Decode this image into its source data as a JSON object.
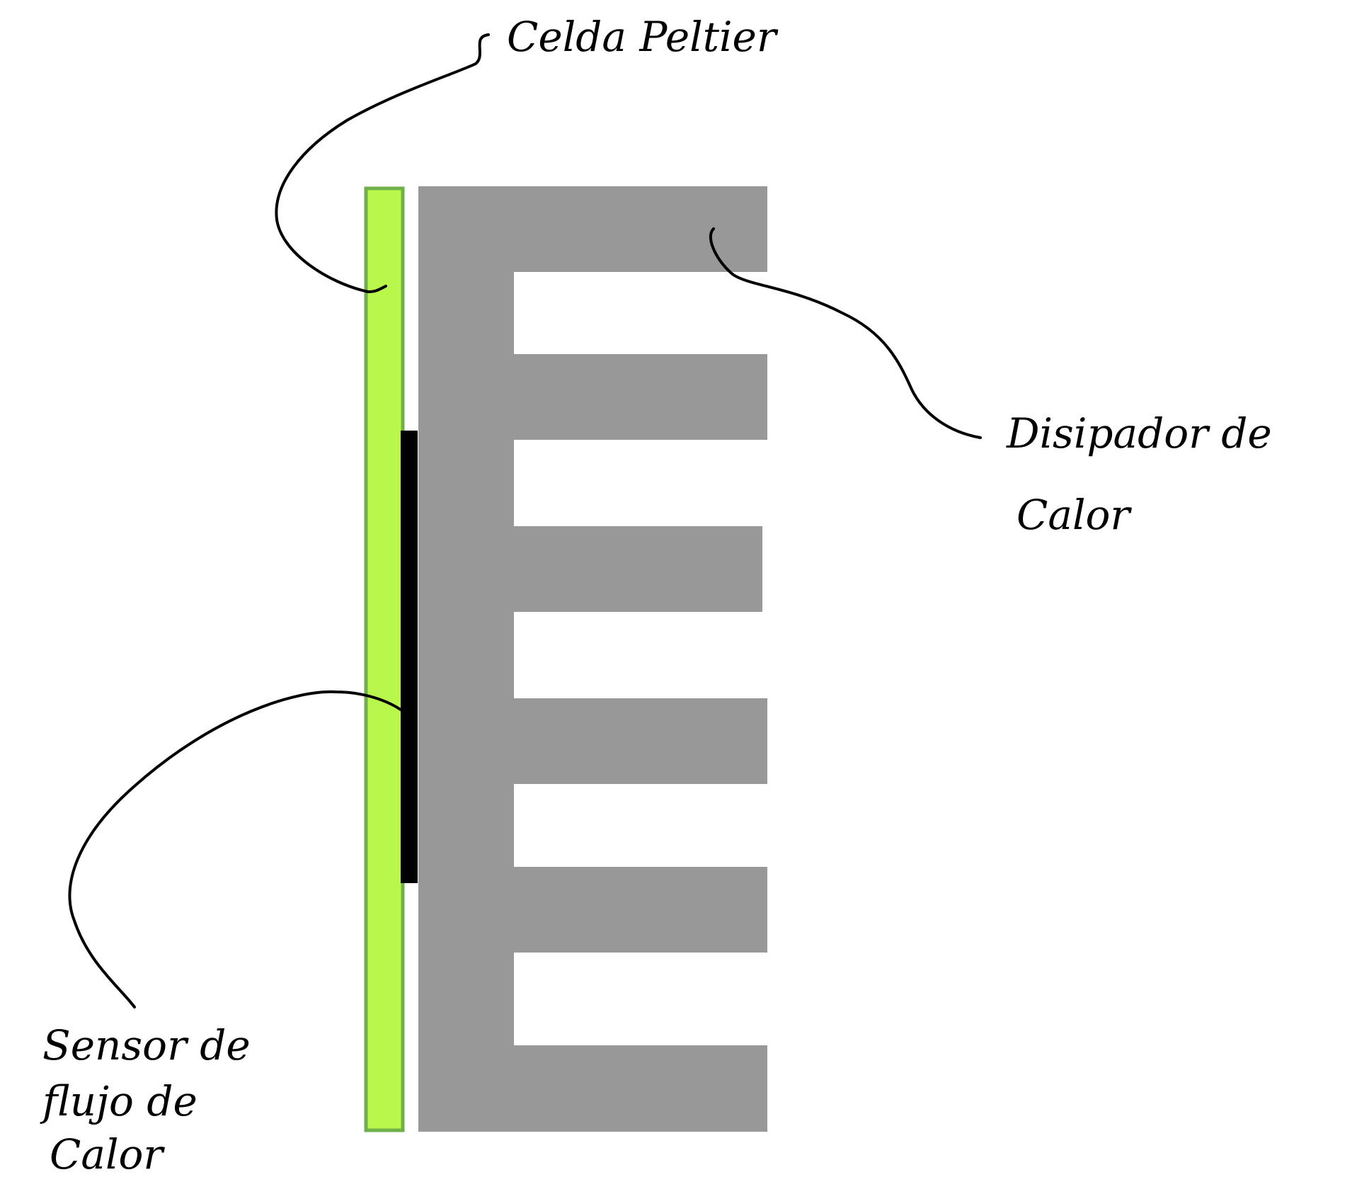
{
  "labels": {
    "peltier": "Celda Peltier",
    "heatsink_line1": "Disipador de",
    "heatsink_line2": "Calor",
    "sensor_line1": "Sensor de",
    "sensor_line2": "flujo de",
    "sensor_line3": "Calor"
  },
  "colors": {
    "peltier_fill": "#b9f74c",
    "peltier_stroke": "#6fb04a",
    "heatsink_fill": "#989898",
    "sensor_fill": "#000000",
    "ink": "#000000"
  }
}
